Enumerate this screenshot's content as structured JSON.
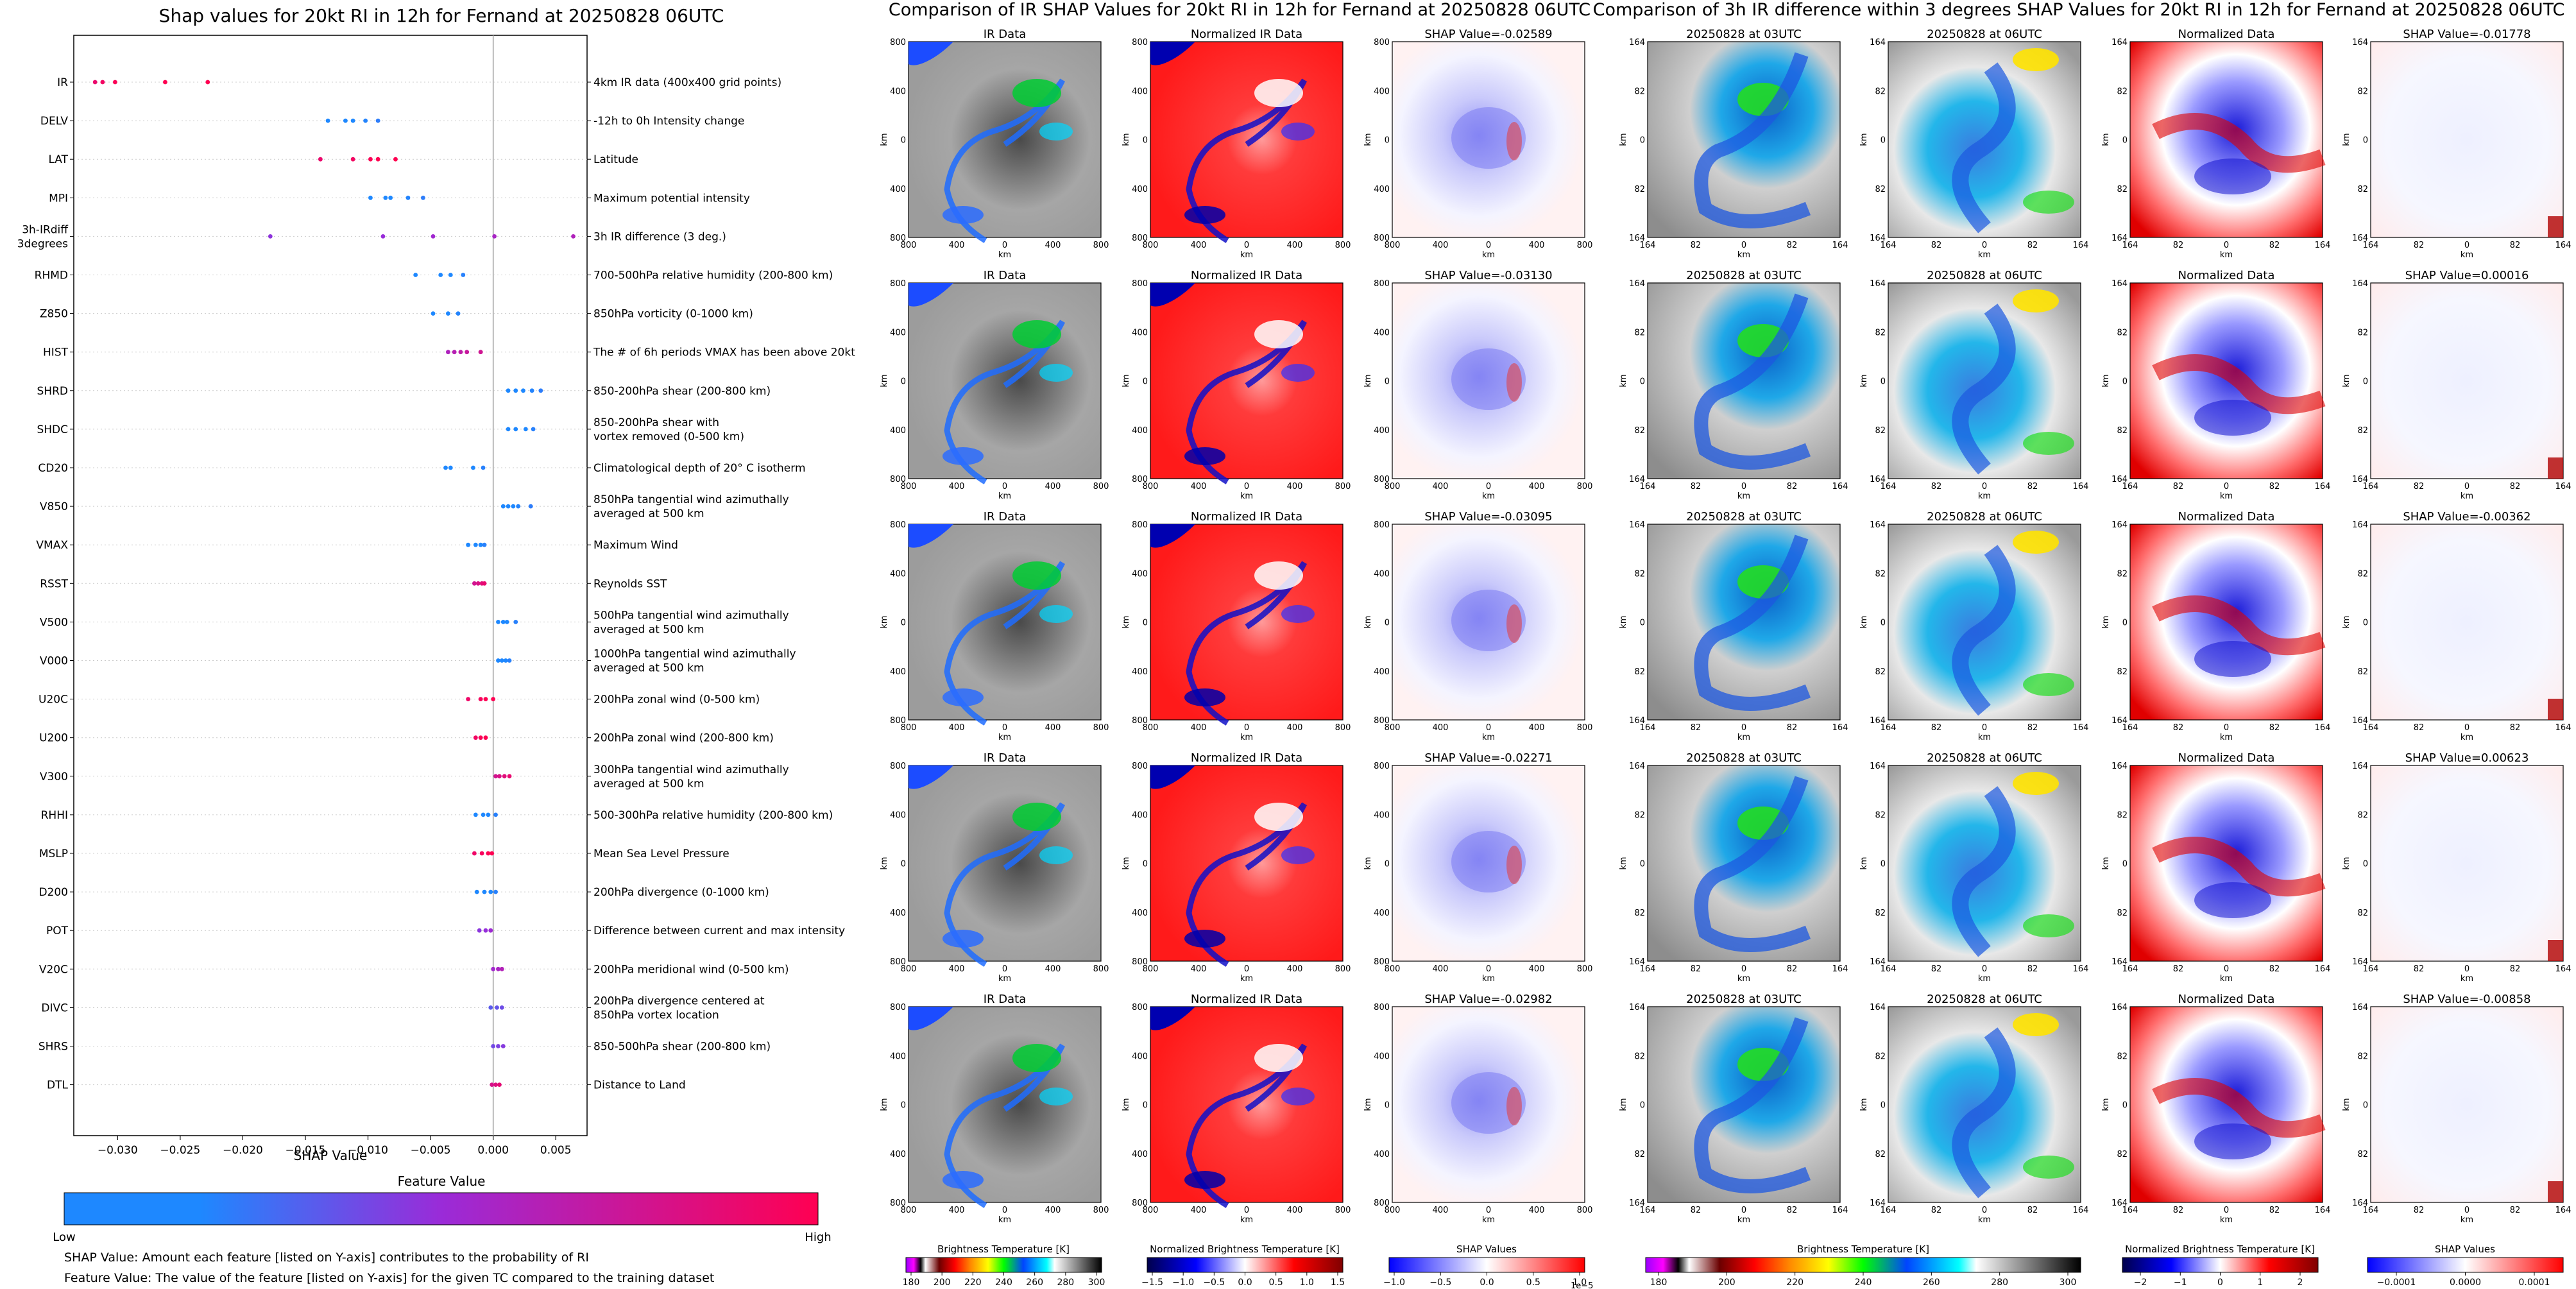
{
  "colors": {
    "shap_low": "#1e88ff",
    "shap_mid": "#8a2bd2",
    "shap_high": "#ff0052",
    "axis": "#000000",
    "ir_gray": "#9a9a9a"
  },
  "summary_plot": {
    "title": "Shap values for 20kt RI in 12h for Fernand at 20250828 06UTC",
    "xlabel": "SHAP Value",
    "xticks": [
      "−0.030",
      "−0.025",
      "−0.020",
      "−0.015",
      "−0.010",
      "−0.005",
      "0.000",
      "0.005"
    ],
    "xtick_values": [
      -0.03,
      -0.025,
      -0.02,
      -0.015,
      -0.01,
      -0.005,
      0.0,
      0.005
    ],
    "xlim": [
      -0.0335,
      0.0075
    ],
    "features": [
      {
        "name": "IR",
        "desc": "4km IR data (400x400 grid points)",
        "values": [
          -0.0318,
          -0.0312,
          -0.0302,
          -0.0262,
          -0.0228
        ],
        "fv": 1.0
      },
      {
        "name": "DELV",
        "desc": "-12h to 0h Intensity change",
        "values": [
          -0.0132,
          -0.0118,
          -0.0112,
          -0.0102,
          -0.0092
        ],
        "fv": 0.0
      },
      {
        "name": "LAT",
        "desc": "Latitude",
        "values": [
          -0.0138,
          -0.0112,
          -0.0098,
          -0.0092,
          -0.0078
        ],
        "fv": 1.0
      },
      {
        "name": "MPI",
        "desc": "Maximum potential intensity",
        "values": [
          -0.0098,
          -0.0086,
          -0.0082,
          -0.0068,
          -0.0056
        ],
        "fv": 0.0
      },
      {
        "name": "3h-IRdiff\n3degrees",
        "desc": "3h IR difference (3 deg.)",
        "values": [
          -0.0178,
          -0.0088,
          -0.0048,
          0.0001,
          0.0064
        ],
        "fv": 0.55
      },
      {
        "name": "RHMD",
        "desc": "700-500hPa relative humidity (200-800 km)",
        "values": [
          -0.0062,
          -0.0042,
          -0.0034,
          -0.0024
        ],
        "fv": 0.0
      },
      {
        "name": "Z850",
        "desc": "850hPa vorticity (0-1000 km)",
        "values": [
          -0.0048,
          -0.0036,
          -0.0028
        ],
        "fv": 0.0
      },
      {
        "name": "HIST",
        "desc": "The # of 6h periods VMAX has been above 20kt",
        "values": [
          -0.0036,
          -0.0031,
          -0.0026,
          -0.0021,
          -0.001
        ],
        "fv": 0.7
      },
      {
        "name": "SHRD",
        "desc": "850-200hPa shear (200-800 km)",
        "values": [
          0.0012,
          0.0018,
          0.0024,
          0.0031,
          0.0038
        ],
        "fv": 0.0
      },
      {
        "name": "SHDC",
        "desc": "850-200hPa shear with\nvortex removed (0-500 km)",
        "values": [
          0.0012,
          0.0018,
          0.0026,
          0.0032
        ],
        "fv": 0.0
      },
      {
        "name": "CD20",
        "desc": "Climatological depth of 20° C isotherm",
        "values": [
          -0.0038,
          -0.0034,
          -0.0016,
          -0.0008
        ],
        "fv": 0.0
      },
      {
        "name": "V850",
        "desc": "850hPa tangential wind azimuthally\naveraged at 500 km",
        "values": [
          0.0008,
          0.0012,
          0.0016,
          0.002,
          0.003
        ],
        "fv": 0.0
      },
      {
        "name": "VMAX",
        "desc": "Maximum Wind",
        "values": [
          -0.002,
          -0.0014,
          -0.001,
          -0.0007
        ],
        "fv": 0.0
      },
      {
        "name": "RSST",
        "desc": "Reynolds SST",
        "values": [
          -0.0015,
          -0.0012,
          -0.0009,
          -0.0007
        ],
        "fv": 0.85
      },
      {
        "name": "V500",
        "desc": "500hPa tangential wind azimuthally\naveraged at 500 km",
        "values": [
          0.0004,
          0.0008,
          0.0011,
          0.0018
        ],
        "fv": 0.0
      },
      {
        "name": "V000",
        "desc": "1000hPa tangential wind azimuthally\naveraged at 500 km",
        "values": [
          0.0004,
          0.0007,
          0.001,
          0.0013
        ],
        "fv": 0.0
      },
      {
        "name": "U20C",
        "desc": "200hPa zonal wind (0-500 km)",
        "values": [
          -0.002,
          -0.001,
          -0.0006,
          0.0
        ],
        "fv": 1.0
      },
      {
        "name": "U200",
        "desc": "200hPa zonal wind (200-800 km)",
        "values": [
          -0.0014,
          -0.001,
          -0.0006
        ],
        "fv": 1.0
      },
      {
        "name": "V300",
        "desc": "300hPa tangential wind azimuthally\naveraged at 500 km",
        "values": [
          0.0002,
          0.0005,
          0.0009,
          0.0013
        ],
        "fv": 0.85
      },
      {
        "name": "RHHI",
        "desc": "500-300hPa relative humidity (200-800 km)",
        "values": [
          -0.0014,
          -0.0008,
          -0.0004,
          0.0002
        ],
        "fv": 0.0
      },
      {
        "name": "MSLP",
        "desc": "Mean Sea Level Pressure",
        "values": [
          -0.0015,
          -0.0009,
          -0.0004,
          -0.0001
        ],
        "fv": 1.0
      },
      {
        "name": "D200",
        "desc": "200hPa divergence (0-1000 km)",
        "values": [
          -0.0013,
          -0.0007,
          -0.0002,
          0.0002
        ],
        "fv": 0.0
      },
      {
        "name": "POT",
        "desc": "Difference between current and max intensity",
        "values": [
          -0.0011,
          -0.0006,
          -0.0002
        ],
        "fv": 0.5
      },
      {
        "name": "V20C",
        "desc": "200hPa meridional wind (0-500 km)",
        "values": [
          0.0,
          0.0004,
          0.0007
        ],
        "fv": 0.6
      },
      {
        "name": "DIVC",
        "desc": "200hPa divergence centered at\n850hPa vortex location",
        "values": [
          -0.0002,
          0.0003,
          0.0007
        ],
        "fv": 0.3
      },
      {
        "name": "SHRS",
        "desc": "850-500hPa shear (200-800 km)",
        "values": [
          0.0,
          0.0004,
          0.0008
        ],
        "fv": 0.4
      },
      {
        "name": "DTL",
        "desc": "Distance to Land",
        "values": [
          -0.0001,
          0.0002,
          0.0005
        ],
        "fv": 0.85
      }
    ],
    "feature_value_title": "Feature Value",
    "low_label": "Low",
    "high_label": "High",
    "note1": "SHAP Value: Amount each feature [listed on Y-axis] contributes to the probability of RI",
    "note2": "Feature Value: The value of the feature [listed on Y-axis] for the given TC compared to the training dataset"
  },
  "ir_panel": {
    "title": "Comparison of IR SHAP Values for 20kt RI in 12h for Fernand at 20250828 06UTC",
    "col_titles": [
      "IR Data",
      "Normalized IR Data"
    ],
    "shap_values": [
      "SHAP Value=-0.02589",
      "SHAP Value=-0.03130",
      "SHAP Value=-0.03095",
      "SHAP Value=-0.02271",
      "SHAP Value=-0.02982"
    ],
    "xticks": [
      "800",
      "400",
      "0",
      "400",
      "800"
    ],
    "yticks": [
      "800",
      "400",
      "0",
      "400",
      "800"
    ],
    "unit": "km",
    "cbar1": {
      "label": "Brightness Temperature [K]",
      "ticks": [
        "180",
        "200",
        "220",
        "240",
        "260",
        "280",
        "300"
      ]
    },
    "cbar2": {
      "label": "Normalized Brightness Temperature [K]",
      "ticks": [
        "−1.5",
        "−1.0",
        "−0.5",
        "0.0",
        "0.5",
        "1.0",
        "1.5"
      ]
    },
    "cbar3": {
      "label": "SHAP Values",
      "ticks": [
        "−1.0",
        "−0.5",
        "0.0",
        "0.5",
        "1.0"
      ],
      "exp": "1e−5"
    }
  },
  "diff_panel": {
    "title": "Comparison of 3h IR difference within 3 degrees SHAP Values for 20kt RI in 12h for Fernand at 20250828 06UTC",
    "col_titles": [
      "20250828 at 03UTC",
      "20250828 at 06UTC",
      "Normalized Data"
    ],
    "shap_values": [
      "SHAP Value=-0.01778",
      "SHAP Value=0.00016",
      "SHAP Value=-0.00362",
      "SHAP Value=0.00623",
      "SHAP Value=-0.00858"
    ],
    "xticks": [
      "164",
      "82",
      "0",
      "82",
      "164"
    ],
    "yticks": [
      "164",
      "82",
      "0",
      "82",
      "164"
    ],
    "unit": "km",
    "cbar1": {
      "label": "Brightness Temperature [K]",
      "ticks": [
        "180",
        "200",
        "220",
        "240",
        "260",
        "280",
        "300"
      ]
    },
    "cbar2": {
      "label": "Normalized Brightness Temperature [K]",
      "ticks": [
        "−2",
        "−1",
        "0",
        "1",
        "2"
      ]
    },
    "cbar3": {
      "label": "SHAP Values",
      "ticks": [
        "−0.0001",
        "0.0000",
        "0.0001"
      ]
    }
  },
  "chart_data": [
    {
      "type": "scatter",
      "title": "Shap values for 20kt RI in 12h for Fernand at 20250828 06UTC",
      "xlabel": "SHAP Value",
      "ylabel": "",
      "xlim": [
        -0.0335,
        0.0075
      ],
      "categories": [
        "IR",
        "DELV",
        "LAT",
        "MPI",
        "3h-IRdiff 3degrees",
        "RHMD",
        "Z850",
        "HIST",
        "SHRD",
        "SHDC",
        "CD20",
        "V850",
        "VMAX",
        "RSST",
        "V500",
        "V000",
        "U20C",
        "U200",
        "V300",
        "RHHI",
        "MSLP",
        "D200",
        "POT",
        "V20C",
        "DIVC",
        "SHRS",
        "DTL"
      ],
      "note": "per-feature SHAP values stored in summary_plot.features[].values"
    },
    {
      "type": "heatmap",
      "title": "Comparison of IR SHAP Values for 20kt RI in 12h for Fernand at 20250828 06UTC",
      "rows": 5,
      "cols": 3,
      "values": [
        -0.02589,
        -0.0313,
        -0.03095,
        -0.02271,
        -0.02982
      ]
    },
    {
      "type": "heatmap",
      "title": "Comparison of 3h IR difference within 3 degrees SHAP Values for 20kt RI in 12h for Fernand at 20250828 06UTC",
      "rows": 5,
      "cols": 4,
      "values": [
        -0.01778,
        0.00016,
        -0.00362,
        0.00623,
        -0.00858
      ]
    }
  ]
}
